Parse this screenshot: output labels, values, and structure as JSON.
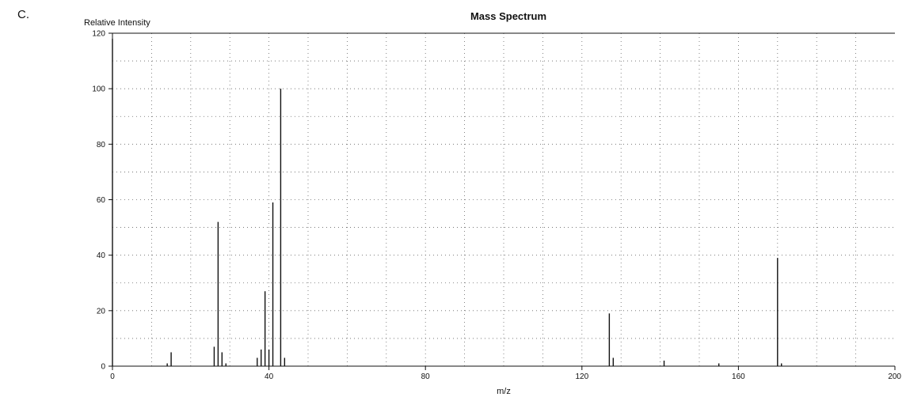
{
  "page_label": "C.",
  "chart_data": {
    "type": "bar",
    "title": "Mass Spectrum",
    "xlabel": "m/z",
    "ylabel": "Relative Intensity",
    "xlim": [
      0,
      200
    ],
    "ylim": [
      0,
      120
    ],
    "xticks": [
      0,
      40,
      80,
      120,
      160,
      200
    ],
    "yticks": [
      0,
      20,
      40,
      60,
      80,
      100,
      120
    ],
    "x_grid_step": 10,
    "y_grid_step": 10,
    "grid": true,
    "peaks": [
      {
        "mz": 0,
        "intensity": 118
      },
      {
        "mz": 14,
        "intensity": 1
      },
      {
        "mz": 15,
        "intensity": 5
      },
      {
        "mz": 26,
        "intensity": 7
      },
      {
        "mz": 27,
        "intensity": 52
      },
      {
        "mz": 28,
        "intensity": 5
      },
      {
        "mz": 29,
        "intensity": 1
      },
      {
        "mz": 37,
        "intensity": 3
      },
      {
        "mz": 38,
        "intensity": 6
      },
      {
        "mz": 39,
        "intensity": 27
      },
      {
        "mz": 40,
        "intensity": 6
      },
      {
        "mz": 41,
        "intensity": 59
      },
      {
        "mz": 43,
        "intensity": 100
      },
      {
        "mz": 44,
        "intensity": 3
      },
      {
        "mz": 127,
        "intensity": 19
      },
      {
        "mz": 128,
        "intensity": 3
      },
      {
        "mz": 141,
        "intensity": 2
      },
      {
        "mz": 155,
        "intensity": 1
      },
      {
        "mz": 170,
        "intensity": 39
      },
      {
        "mz": 171,
        "intensity": 1
      }
    ]
  }
}
